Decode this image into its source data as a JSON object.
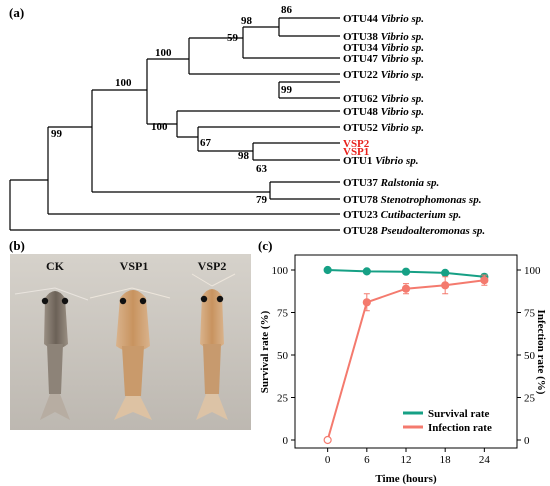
{
  "panel_a": {
    "label": "(a)",
    "leaves": [
      {
        "otu": "OTU44",
        "taxon": "Vibrio sp.",
        "color": "#000000"
      },
      {
        "otu": "OTU38",
        "taxon": "Vibrio sp.",
        "color": "#000000"
      },
      {
        "otu": "OTU34",
        "taxon": "Vibrio sp.",
        "color": "#000000"
      },
      {
        "otu": "OTU47",
        "taxon": "Vibrio sp.",
        "color": "#000000"
      },
      {
        "otu": "OTU22",
        "taxon": "Vibrio sp.",
        "color": "#000000"
      },
      {
        "otu": "OTU62",
        "taxon": "Vibrio sp.",
        "color": "#000000"
      },
      {
        "otu": "OTU48",
        "taxon": "Vibrio sp.",
        "color": "#000000"
      },
      {
        "otu": "OTU52",
        "taxon": "Vibrio sp.",
        "color": "#000000"
      },
      {
        "otu": "VSP2",
        "taxon": "",
        "color": "#e8211c"
      },
      {
        "otu": "VSP1",
        "taxon": "",
        "color": "#e8211c"
      },
      {
        "otu": "OTU1",
        "taxon": "Vibrio sp.",
        "color": "#000000"
      },
      {
        "otu": "OTU37",
        "taxon": "Ralstonia sp.",
        "color": "#000000"
      },
      {
        "otu": "OTU78",
        "taxon": "Stenotrophomonas sp.",
        "color": "#000000"
      },
      {
        "otu": "OTU23",
        "taxon": "Cutibacterium sp.",
        "color": "#000000"
      },
      {
        "otu": "OTU28",
        "taxon": "Pseudoalteromonas sp.",
        "color": "#000000"
      }
    ],
    "bootstrap": [
      "86",
      "98",
      "59",
      "100",
      "99",
      "100",
      "100",
      "67",
      "98",
      "63",
      "99",
      "79"
    ]
  },
  "panel_b": {
    "label": "(b)",
    "samples": [
      "CK",
      "VSP1",
      "VSP2"
    ]
  },
  "panel_c": {
    "label": "(c)"
  },
  "chart_data": {
    "type": "line",
    "x": [
      0,
      6,
      12,
      18,
      24
    ],
    "xlabel": "Time (hours)",
    "ylabel": "Survival rate (%)",
    "y2label": "Infection rate (%)",
    "ylim": [
      0,
      100
    ],
    "y2lim": [
      0,
      100
    ],
    "xticks": [
      0,
      6,
      12,
      18,
      24
    ],
    "yticks": [
      0,
      25,
      50,
      75,
      100
    ],
    "grid": false,
    "legend_position": "bottom-right",
    "series": [
      {
        "name": "Survival rate",
        "axis": "left",
        "color": "#16a085",
        "values": [
          100,
          99.2,
          99,
          98.3,
          96
        ],
        "errors": [
          0,
          0,
          0,
          0.6,
          1.5
        ]
      },
      {
        "name": "Infection rate",
        "axis": "right",
        "color": "#f47a6e",
        "values": [
          0,
          81,
          89,
          91,
          94
        ],
        "errors": [
          0,
          5,
          3,
          5,
          3
        ]
      }
    ]
  }
}
